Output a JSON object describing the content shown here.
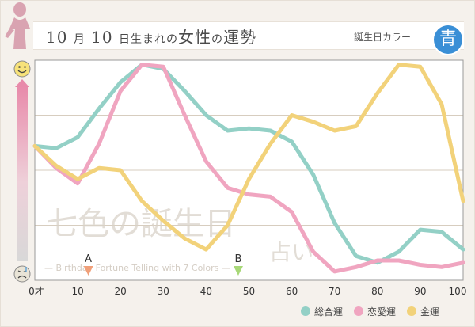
{
  "header": {
    "title_num1": "10",
    "title_month": "月",
    "title_num2": "10",
    "title_rest": "日生まれの",
    "title_female": "女性",
    "title_no": "の",
    "title_fortune": "運勢",
    "birth_color_label": "誕生日カラー",
    "birth_color_char": "青",
    "birth_color_hex": "#3a8fd6"
  },
  "watermark": {
    "main": "七色の誕生日",
    "sub": "占い",
    "english": "— Birthday Fortune Telling with 7 Colors —"
  },
  "chart_data": {
    "type": "line",
    "x": [
      0,
      5,
      10,
      15,
      20,
      25,
      30,
      35,
      40,
      45,
      50,
      55,
      60,
      65,
      70,
      75,
      80,
      85,
      90,
      95,
      100
    ],
    "xticks": [
      "0才",
      "10",
      "20",
      "30",
      "40",
      "50",
      "60",
      "70",
      "80",
      "90",
      "100"
    ],
    "xlim": [
      0,
      100
    ],
    "ylim": [
      0,
      100
    ],
    "grid": true,
    "legend_position": "bottom-right",
    "y_top_icon": "happy-face-icon",
    "y_bottom_icon": "sad-face-icon",
    "series": [
      {
        "name": "総合運",
        "color": "#93d0c6",
        "values": [
          61,
          60,
          65,
          78,
          90,
          98,
          96,
          86,
          75,
          68,
          69,
          68,
          63,
          48,
          26,
          11,
          8,
          13,
          23,
          22,
          14
        ]
      },
      {
        "name": "恋愛運",
        "color": "#f0a5c0",
        "values": [
          61,
          51,
          44,
          62,
          86,
          98,
          97,
          75,
          54,
          42,
          39,
          38,
          31,
          13,
          4,
          6,
          9,
          9,
          7,
          6,
          8
        ]
      },
      {
        "name": "金運",
        "color": "#f2d27a",
        "values": [
          61,
          52,
          46,
          51,
          50,
          36,
          27,
          19,
          14,
          25,
          46,
          62,
          75,
          72,
          68,
          70,
          85,
          98,
          97,
          80,
          36
        ]
      }
    ],
    "markers": [
      {
        "label": "A",
        "x": 12.5,
        "color": "#f0a07a"
      },
      {
        "label": "B",
        "x": 47.5,
        "color": "#a8d878"
      }
    ]
  }
}
